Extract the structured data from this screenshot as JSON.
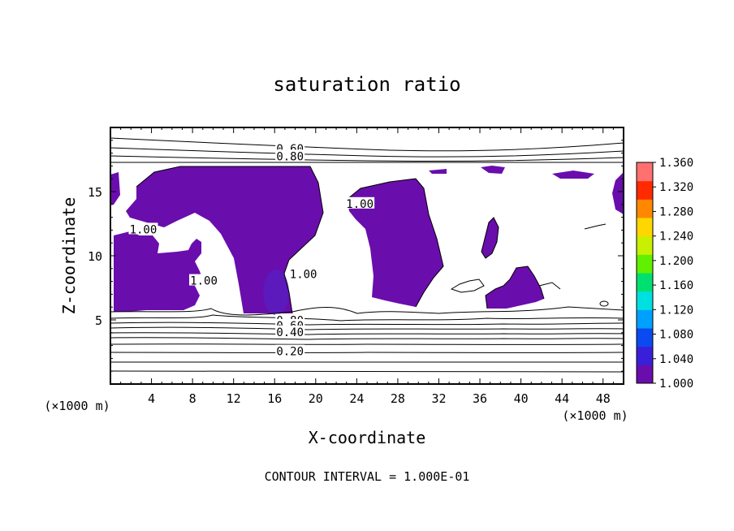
{
  "chart_data": {
    "type": "contour",
    "title": "saturation ratio",
    "xlabel": "X-coordinate",
    "ylabel": "Z-coordinate",
    "x_unit_label": "(×1000 m)",
    "y_unit_label": "(×1000 m)",
    "footer": "CONTOUR INTERVAL = 1.000E-01",
    "xlim": [
      0,
      50
    ],
    "ylim": [
      0,
      20
    ],
    "x_ticks": [
      4,
      8,
      12,
      16,
      20,
      24,
      28,
      32,
      36,
      40,
      44,
      48
    ],
    "y_ticks": [
      5,
      10,
      15
    ],
    "contour_labels": [
      {
        "text": "0.60",
        "x": 17.5,
        "z": 18.3
      },
      {
        "text": "0.80",
        "x": 17.5,
        "z": 17.7
      },
      {
        "text": "1.00",
        "x": 3.2,
        "z": 12.0
      },
      {
        "text": "1.00",
        "x": 24.3,
        "z": 14.0
      },
      {
        "text": "1.00",
        "x": 9.1,
        "z": 8.0
      },
      {
        "text": "1.00",
        "x": 18.8,
        "z": 8.5
      },
      {
        "text": "0.80",
        "x": 17.5,
        "z": 4.9
      },
      {
        "text": "0.60",
        "x": 17.5,
        "z": 4.5
      },
      {
        "text": "0.40",
        "x": 17.5,
        "z": 4.0
      },
      {
        "text": "0.20",
        "x": 17.5,
        "z": 2.5
      }
    ],
    "colorbar": {
      "min": 1.0,
      "max": 1.36,
      "ticks": [
        "1.360",
        "1.320",
        "1.280",
        "1.240",
        "1.200",
        "1.160",
        "1.120",
        "1.080",
        "1.040",
        "1.000"
      ],
      "colors": [
        "#6a0dad",
        "#3a1fd8",
        "#0a4af0",
        "#00a0ff",
        "#00e0e0",
        "#00e070",
        "#60f000",
        "#c8f000",
        "#ffd700",
        "#ff8800",
        "#ff2a00",
        "#ff7070"
      ]
    }
  }
}
